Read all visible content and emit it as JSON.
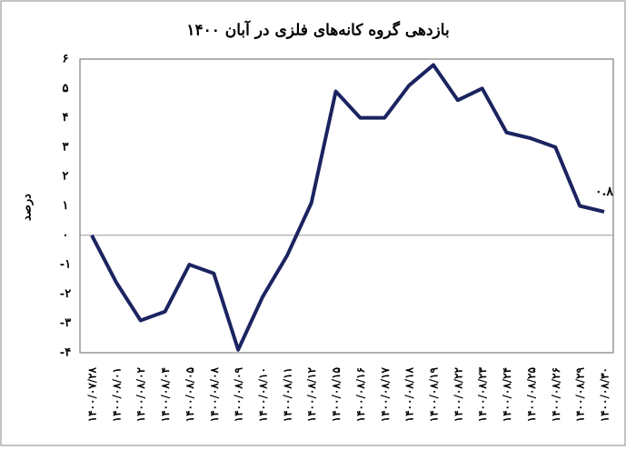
{
  "chart_data": {
    "type": "line",
    "title": "بازدهی گروه کانه‌های فلزی در آبان ۱۴۰۰",
    "y_label": "درصد",
    "categories": [
      "۱۴۰۰/۰۷/۲۸",
      "۱۴۰۰/۰۸/۰۱",
      "۱۴۰۰/۰۸/۰۲",
      "۱۴۰۰/۰۸/۰۴",
      "۱۴۰۰/۰۸/۰۵",
      "۱۴۰۰/۰۸/۰۸",
      "۱۴۰۰/۰۸/۰۹",
      "۱۴۰۰/۰۸/۱۰",
      "۱۴۰۰/۰۸/۱۱",
      "۱۴۰۰/۰۸/۱۲",
      "۱۴۰۰/۰۸/۱۵",
      "۱۴۰۰/۰۸/۱۶",
      "۱۴۰۰/۰۸/۱۷",
      "۱۴۰۰/۰۸/۱۸",
      "۱۴۰۰/۰۸/۱۹",
      "۱۴۰۰/۰۸/۲۲",
      "۱۴۰۰/۰۸/۲۳",
      "۱۴۰۰/۰۸/۲۴",
      "۱۴۰۰/۰۸/۲۵",
      "۱۴۰۰/۰۸/۲۶",
      "۱۴۰۰/۰۸/۲۹",
      "۱۴۰۰/۰۸/۳۰"
    ],
    "values": [
      0,
      -1.6,
      -2.9,
      -2.6,
      -1.0,
      -1.3,
      -3.9,
      -2.1,
      -0.7,
      1.1,
      4.9,
      4.0,
      4.0,
      5.1,
      5.8,
      4.6,
      5.0,
      3.5,
      3.3,
      3.0,
      1.0,
      0.8
    ],
    "value_labels": [
      null,
      null,
      null,
      null,
      null,
      null,
      null,
      null,
      null,
      null,
      null,
      null,
      null,
      null,
      null,
      null,
      null,
      null,
      null,
      null,
      null,
      "۰.۸"
    ],
    "color": "#1b2460",
    "ylim": [
      -4,
      6
    ],
    "yticks": [
      {
        "value": -4,
        "label": "-۴"
      },
      {
        "value": -3,
        "label": "-۳"
      },
      {
        "value": -2,
        "label": "-۲"
      },
      {
        "value": -1,
        "label": "-۱"
      },
      {
        "value": 0,
        "label": "۰"
      },
      {
        "value": 1,
        "label": "۱"
      },
      {
        "value": 2,
        "label": "۲"
      },
      {
        "value": 3,
        "label": "۳"
      },
      {
        "value": 4,
        "label": "۴"
      },
      {
        "value": 5,
        "label": "۵"
      },
      {
        "value": 6,
        "label": "۶"
      }
    ]
  }
}
